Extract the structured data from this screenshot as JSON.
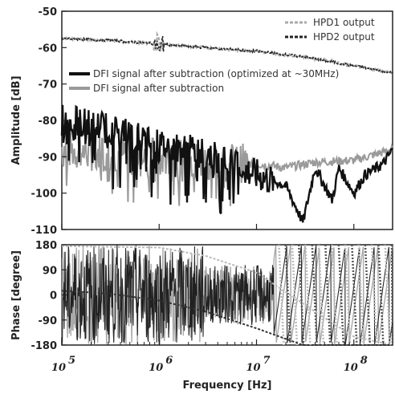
{
  "chart_data": [
    {
      "type": "line",
      "panel": "amplitude",
      "ylabel": "Amplitude [dB]",
      "ylim": [
        -110,
        -50
      ],
      "yticks": [
        "-50",
        "-60",
        "-70",
        "-80",
        "-90",
        "-100",
        "-110"
      ],
      "ytick_values": [
        -50,
        -60,
        -70,
        -80,
        -90,
        -100,
        -110
      ],
      "xscale": "log",
      "xlim": [
        100000,
        250000000
      ],
      "legend_top": [
        {
          "name": "HPD1 output",
          "color": "#aaaaaa",
          "dash": "dash"
        },
        {
          "name": "HPD2 output",
          "color": "#222222",
          "dash": "dash"
        }
      ],
      "legend_mid": [
        {
          "name": "DFI signal after subtraction (optimized at ~30MHz)",
          "color": "#111111"
        },
        {
          "name": "DFI signal after subtraction",
          "color": "#9a9a9a"
        }
      ],
      "series": [
        {
          "name": "HPD1 output",
          "x": [
            100000,
            300000,
            1000000,
            3000000,
            10000000,
            30000000,
            100000000,
            250000000
          ],
          "y": [
            -57.5,
            -58,
            -59,
            -60,
            -61,
            -62.5,
            -65,
            -67
          ]
        },
        {
          "name": "HPD2 output",
          "x": [
            100000,
            300000,
            1000000,
            3000000,
            10000000,
            30000000,
            100000000,
            250000000
          ],
          "y": [
            -57.5,
            -58,
            -59,
            -60,
            -61,
            -62.5,
            -65,
            -67
          ]
        },
        {
          "name": "DFI signal after subtraction (optimized at ~30MHz)",
          "x": [
            100000,
            300000,
            1000000,
            3000000,
            10000000,
            20000000,
            30000000,
            40000000,
            60000000,
            70000000,
            100000000,
            130000000,
            200000000,
            250000000
          ],
          "y": [
            -80,
            -82,
            -87,
            -89,
            -95,
            -98,
            -108,
            -93,
            -102,
            -93,
            -100,
            -95,
            -92,
            -88
          ]
        },
        {
          "name": "DFI signal after subtraction",
          "x": [
            100000,
            300000,
            1000000,
            3000000,
            10000000,
            20000000,
            40000000,
            100000000,
            250000000
          ],
          "y": [
            -88,
            -89,
            -90,
            -91,
            -92,
            -93,
            -91.5,
            -91,
            -88
          ]
        }
      ]
    },
    {
      "type": "line",
      "panel": "phase",
      "ylabel": "Phase [degree]",
      "xlabel": "Frequency [Hz]",
      "ylim": [
        -180,
        180
      ],
      "yticks": [
        "180",
        "90",
        "0",
        "-90",
        "-180"
      ],
      "ytick_values": [
        180,
        90,
        0,
        -90,
        -180
      ],
      "xscale": "log",
      "xlim": [
        100000,
        250000000
      ],
      "xticks": [
        "10",
        "10",
        "10",
        "10"
      ],
      "xtick_exponents": [
        "5",
        "6",
        "7",
        "8"
      ],
      "xtick_values": [
        100000,
        1000000,
        10000000,
        100000000
      ],
      "series": [
        {
          "name": "HPD1 output",
          "x": [
            100000,
            1000000,
            3000000,
            10000000,
            20000000,
            40000000,
            100000000,
            250000000
          ],
          "y": [
            175,
            170,
            140,
            80,
            10,
            -60,
            -150,
            -180
          ]
        },
        {
          "name": "HPD2 output",
          "x": [
            100000,
            300000,
            1000000,
            3000000,
            10000000,
            30000000,
            100000000,
            250000000
          ],
          "y": [
            15,
            5,
            -20,
            -60,
            -120,
            -180,
            -180,
            -180
          ]
        }
      ]
    }
  ]
}
